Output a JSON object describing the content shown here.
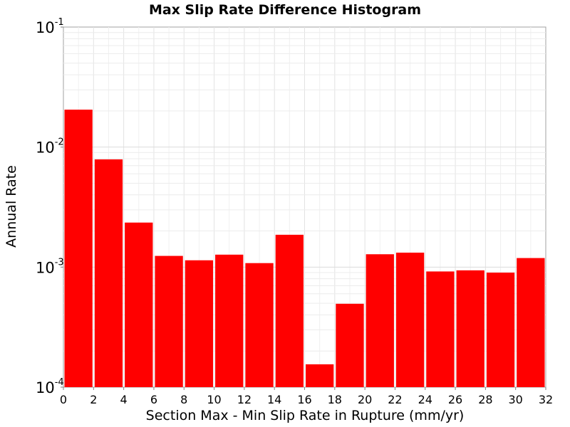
{
  "chart_data": {
    "type": "bar",
    "title": "Max Slip Rate Difference Histogram",
    "xlabel": "Section Max - Min Slip Rate in Rupture (mm/yr)",
    "ylabel": "Annual Rate",
    "xlim": [
      0,
      32
    ],
    "ylim": [
      0.0001,
      0.1
    ],
    "yscale": "log",
    "grid": true,
    "bar_width": 2,
    "bar_color": "#ff0000",
    "x_ticks": [
      "0",
      "2",
      "4",
      "6",
      "8",
      "10",
      "12",
      "14",
      "16",
      "18",
      "20",
      "22",
      "24",
      "26",
      "28",
      "30",
      "32"
    ],
    "y_ticks": [
      {
        "base": "10",
        "exp": "-4",
        "value": 0.0001
      },
      {
        "base": "10",
        "exp": "-3",
        "value": 0.001
      },
      {
        "base": "10",
        "exp": "-2",
        "value": 0.01
      },
      {
        "base": "10",
        "exp": "-1",
        "value": 0.1
      }
    ],
    "bins": [
      0,
      2,
      4,
      6,
      8,
      10,
      12,
      14,
      16,
      18,
      20,
      22,
      24,
      26,
      28,
      30
    ],
    "values": [
      0.0205,
      0.0079,
      0.00235,
      0.00124,
      0.00114,
      0.00127,
      0.00108,
      0.00186,
      0.000155,
      0.000495,
      0.00128,
      0.00132,
      0.00092,
      0.00094,
      0.0009,
      0.00119
    ]
  }
}
